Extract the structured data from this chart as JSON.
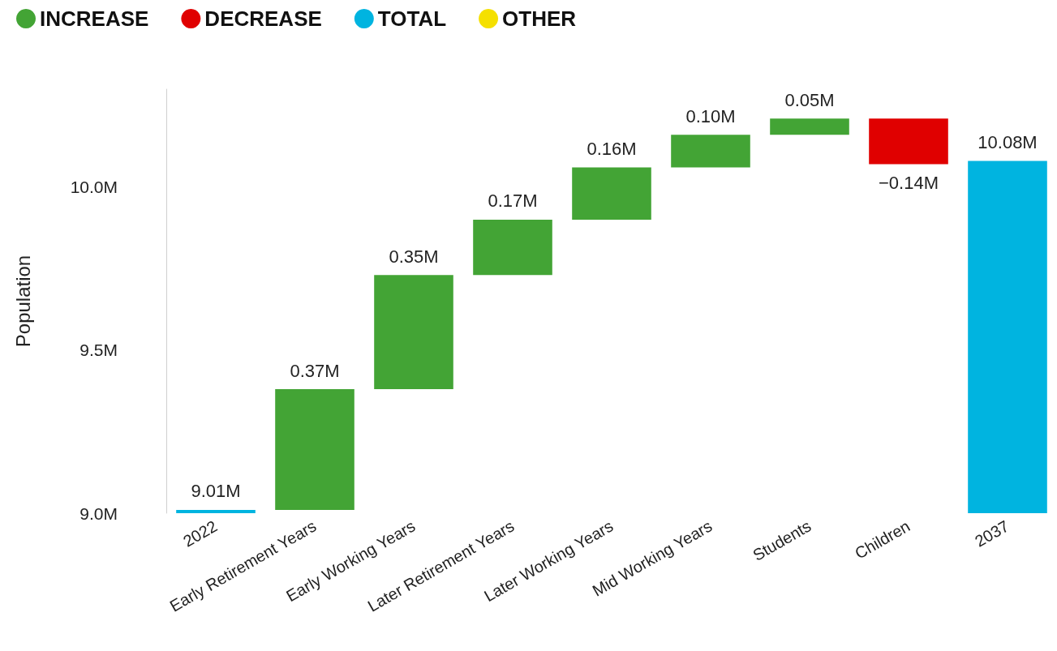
{
  "chart_data": {
    "type": "bar",
    "ylabel": "Population",
    "categories": [
      "2022",
      "Early Retirement Years",
      "Early Working Years",
      "Later Retirement Years",
      "Later Working Years",
      "Mid Working Years",
      "Students",
      "Children",
      "2037"
    ],
    "series": [
      {
        "name": "INCREASE",
        "color": "#43a435",
        "base": [
          null,
          9.01,
          9.38,
          9.73,
          9.9,
          10.06,
          10.16,
          null,
          null
        ],
        "values": [
          null,
          0.37,
          0.35,
          0.17,
          0.16,
          0.1,
          0.05,
          null,
          null
        ],
        "value_labels": [
          null,
          "0.37M",
          "0.35M",
          "0.17M",
          "0.16M",
          "0.10M",
          "0.05M",
          null,
          null
        ]
      },
      {
        "name": "DECREASE",
        "color": "#e00000",
        "base": [
          null,
          null,
          null,
          null,
          null,
          null,
          null,
          10.21,
          null
        ],
        "values": [
          null,
          null,
          null,
          null,
          null,
          null,
          null,
          -0.14,
          null
        ],
        "value_labels": [
          null,
          null,
          null,
          null,
          null,
          null,
          null,
          "−0.14M",
          null
        ]
      },
      {
        "name": "TOTAL",
        "color": "#00b4e0",
        "values": [
          9.01,
          null,
          null,
          null,
          null,
          null,
          null,
          null,
          10.08
        ],
        "value_labels": [
          "9.01M",
          null,
          null,
          null,
          null,
          null,
          null,
          null,
          "10.08M"
        ]
      },
      {
        "name": "OTHER",
        "color": "#f5e000",
        "values": [
          null,
          null,
          null,
          null,
          null,
          null,
          null,
          null,
          null
        ]
      }
    ],
    "ylim": [
      9.0,
      10.3
    ],
    "yticks": [
      {
        "value": 9.0,
        "label": "9.0M"
      },
      {
        "value": 9.5,
        "label": "9.5M"
      },
      {
        "value": 10.0,
        "label": "10.0M"
      }
    ],
    "legend": "top left"
  }
}
